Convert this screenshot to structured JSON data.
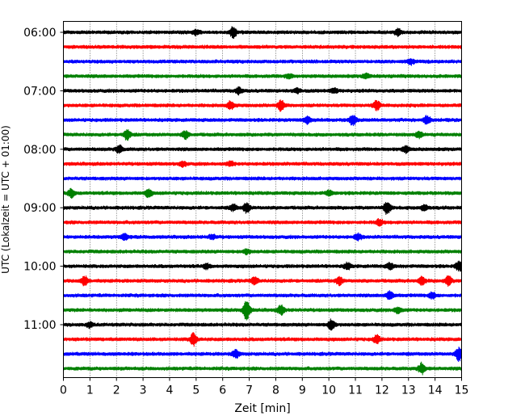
{
  "chart_data": {
    "type": "line",
    "title": "",
    "xlabel": "Zeit  [min]",
    "ylabel": "UTC (Lokalzeit = UTC + 01:00)",
    "xlim": [
      0,
      15
    ],
    "x_ticks": [
      0,
      1,
      2,
      3,
      4,
      5,
      6,
      7,
      8,
      9,
      10,
      11,
      12,
      13,
      14,
      15
    ],
    "y_ticks": [
      "06:00",
      "07:00",
      "08:00",
      "09:00",
      "10:00",
      "11:00"
    ],
    "grid": "vertical dotted at each minute",
    "trace_interval_min": 15,
    "colors": [
      "#000000",
      "#ff0000",
      "#0000ff",
      "#008000"
    ],
    "traces": [
      {
        "start": "06:00",
        "color": "#000000",
        "events": [
          [
            5.0,
            0.3
          ],
          [
            6.4,
            0.7
          ],
          [
            12.6,
            0.4
          ]
        ]
      },
      {
        "start": "06:15",
        "color": "#ff0000",
        "events": []
      },
      {
        "start": "06:30",
        "color": "#0000ff",
        "events": [
          [
            13.1,
            0.3
          ]
        ]
      },
      {
        "start": "06:45",
        "color": "#008000",
        "events": [
          [
            8.5,
            0.3
          ],
          [
            11.4,
            0.3
          ]
        ]
      },
      {
        "start": "07:00",
        "color": "#000000",
        "events": [
          [
            6.6,
            0.4
          ],
          [
            8.8,
            0.3
          ],
          [
            10.2,
            0.3
          ]
        ]
      },
      {
        "start": "07:15",
        "color": "#ff0000",
        "events": [
          [
            6.3,
            0.5
          ],
          [
            8.2,
            0.7
          ],
          [
            11.8,
            0.6
          ]
        ]
      },
      {
        "start": "07:30",
        "color": "#0000ff",
        "events": [
          [
            9.2,
            0.5
          ],
          [
            10.9,
            0.7
          ],
          [
            13.7,
            0.5
          ]
        ]
      },
      {
        "start": "07:45",
        "color": "#008000",
        "events": [
          [
            2.4,
            0.7
          ],
          [
            4.6,
            0.5
          ],
          [
            13.4,
            0.4
          ]
        ]
      },
      {
        "start": "08:00",
        "color": "#000000",
        "events": [
          [
            2.1,
            0.5
          ],
          [
            12.9,
            0.4
          ]
        ]
      },
      {
        "start": "08:15",
        "color": "#ff0000",
        "events": [
          [
            4.5,
            0.3
          ],
          [
            6.3,
            0.3
          ]
        ]
      },
      {
        "start": "08:30",
        "color": "#0000ff",
        "events": []
      },
      {
        "start": "08:45",
        "color": "#008000",
        "events": [
          [
            0.3,
            0.5
          ],
          [
            3.2,
            0.5
          ],
          [
            10.0,
            0.3
          ]
        ]
      },
      {
        "start": "09:00",
        "color": "#000000",
        "events": [
          [
            6.4,
            0.4
          ],
          [
            6.9,
            0.6
          ],
          [
            12.2,
            0.8
          ],
          [
            13.6,
            0.4
          ]
        ]
      },
      {
        "start": "09:15",
        "color": "#ff0000",
        "events": [
          [
            11.9,
            0.4
          ]
        ]
      },
      {
        "start": "09:30",
        "color": "#0000ff",
        "events": [
          [
            2.3,
            0.4
          ],
          [
            5.6,
            0.3
          ],
          [
            11.1,
            0.4
          ]
        ]
      },
      {
        "start": "09:45",
        "color": "#008000",
        "events": [
          [
            6.9,
            0.3
          ]
        ]
      },
      {
        "start": "10:00",
        "color": "#000000",
        "events": [
          [
            5.4,
            0.3
          ],
          [
            10.7,
            0.4
          ],
          [
            12.3,
            0.4
          ],
          [
            14.9,
            0.6
          ]
        ]
      },
      {
        "start": "10:15",
        "color": "#ff0000",
        "events": [
          [
            0.8,
            0.6
          ],
          [
            7.2,
            0.5
          ],
          [
            10.4,
            0.5
          ],
          [
            13.5,
            0.5
          ],
          [
            14.5,
            0.6
          ]
        ]
      },
      {
        "start": "10:30",
        "color": "#0000ff",
        "events": [
          [
            12.3,
            0.6
          ],
          [
            13.9,
            0.4
          ]
        ]
      },
      {
        "start": "10:45",
        "color": "#008000",
        "events": [
          [
            6.9,
            1.3
          ],
          [
            8.2,
            0.6
          ],
          [
            12.6,
            0.4
          ]
        ]
      },
      {
        "start": "11:00",
        "color": "#000000",
        "events": [
          [
            1.0,
            0.3
          ],
          [
            10.1,
            0.7
          ]
        ]
      },
      {
        "start": "11:15",
        "color": "#ff0000",
        "events": [
          [
            4.9,
            0.8
          ],
          [
            11.8,
            0.5
          ]
        ]
      },
      {
        "start": "11:30",
        "color": "#0000ff",
        "events": [
          [
            6.5,
            0.5
          ],
          [
            14.9,
            0.9
          ]
        ]
      },
      {
        "start": "11:45",
        "color": "#008000",
        "events": [
          [
            13.5,
            0.7
          ]
        ]
      }
    ]
  }
}
